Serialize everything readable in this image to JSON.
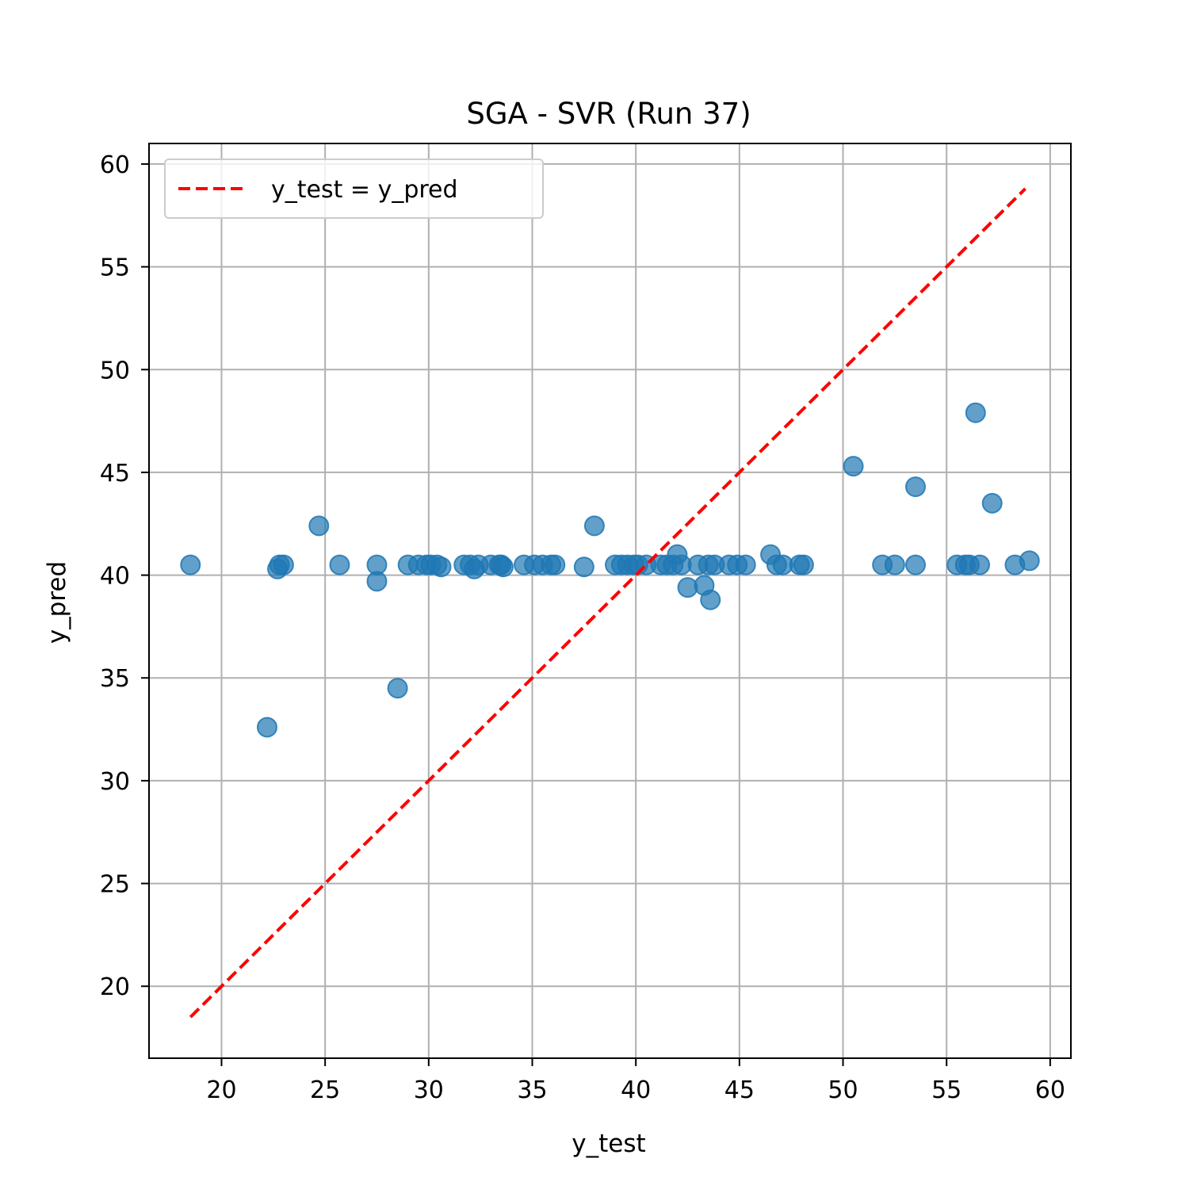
{
  "chart_data": {
    "type": "scatter",
    "title": "SGA - SVR (Run 37)",
    "xlabel": "y_test",
    "ylabel": "y_pred",
    "xlim": [
      16.5,
      61
    ],
    "ylim": [
      16.5,
      61
    ],
    "xticks": [
      20,
      25,
      30,
      35,
      40,
      45,
      50,
      55,
      60
    ],
    "yticks": [
      20,
      25,
      30,
      35,
      40,
      45,
      50,
      55,
      60
    ],
    "grid": true,
    "legend_position": "upper-left",
    "colors": {
      "points": "#1f77b4",
      "reference_line": "#ff0000"
    },
    "reference_line": {
      "name": "y_test = y_pred",
      "x": [
        18.5,
        58.8
      ],
      "y": [
        18.5,
        58.8
      ]
    },
    "points": [
      {
        "x": 18.5,
        "y": 40.5
      },
      {
        "x": 22.2,
        "y": 32.6
      },
      {
        "x": 22.7,
        "y": 40.3
      },
      {
        "x": 22.8,
        "y": 40.5
      },
      {
        "x": 23.0,
        "y": 40.5
      },
      {
        "x": 24.7,
        "y": 42.4
      },
      {
        "x": 25.7,
        "y": 40.5
      },
      {
        "x": 27.5,
        "y": 40.5
      },
      {
        "x": 27.5,
        "y": 39.7
      },
      {
        "x": 28.5,
        "y": 34.5
      },
      {
        "x": 29.0,
        "y": 40.5
      },
      {
        "x": 29.5,
        "y": 40.5
      },
      {
        "x": 29.9,
        "y": 40.5
      },
      {
        "x": 30.1,
        "y": 40.5
      },
      {
        "x": 30.4,
        "y": 40.5
      },
      {
        "x": 30.6,
        "y": 40.4
      },
      {
        "x": 31.7,
        "y": 40.5
      },
      {
        "x": 32.0,
        "y": 40.5
      },
      {
        "x": 32.2,
        "y": 40.3
      },
      {
        "x": 32.4,
        "y": 40.5
      },
      {
        "x": 33.0,
        "y": 40.5
      },
      {
        "x": 33.4,
        "y": 40.5
      },
      {
        "x": 33.5,
        "y": 40.5
      },
      {
        "x": 33.6,
        "y": 40.4
      },
      {
        "x": 34.6,
        "y": 40.5
      },
      {
        "x": 35.1,
        "y": 40.5
      },
      {
        "x": 35.5,
        "y": 40.5
      },
      {
        "x": 35.9,
        "y": 40.5
      },
      {
        "x": 36.1,
        "y": 40.5
      },
      {
        "x": 37.5,
        "y": 40.4
      },
      {
        "x": 38.0,
        "y": 42.4
      },
      {
        "x": 39.0,
        "y": 40.5
      },
      {
        "x": 39.3,
        "y": 40.5
      },
      {
        "x": 39.6,
        "y": 40.5
      },
      {
        "x": 39.9,
        "y": 40.5
      },
      {
        "x": 40.1,
        "y": 40.5
      },
      {
        "x": 40.5,
        "y": 40.5
      },
      {
        "x": 41.2,
        "y": 40.5
      },
      {
        "x": 41.5,
        "y": 40.5
      },
      {
        "x": 41.8,
        "y": 40.5
      },
      {
        "x": 42.0,
        "y": 41.0
      },
      {
        "x": 42.2,
        "y": 40.5
      },
      {
        "x": 42.5,
        "y": 39.4
      },
      {
        "x": 43.0,
        "y": 40.5
      },
      {
        "x": 43.3,
        "y": 39.5
      },
      {
        "x": 43.6,
        "y": 38.8
      },
      {
        "x": 43.5,
        "y": 40.5
      },
      {
        "x": 43.8,
        "y": 40.5
      },
      {
        "x": 44.5,
        "y": 40.5
      },
      {
        "x": 44.9,
        "y": 40.5
      },
      {
        "x": 45.3,
        "y": 40.5
      },
      {
        "x": 46.5,
        "y": 41.0
      },
      {
        "x": 46.8,
        "y": 40.5
      },
      {
        "x": 47.1,
        "y": 40.5
      },
      {
        "x": 47.9,
        "y": 40.5
      },
      {
        "x": 48.1,
        "y": 40.5
      },
      {
        "x": 50.5,
        "y": 45.3
      },
      {
        "x": 51.9,
        "y": 40.5
      },
      {
        "x": 52.5,
        "y": 40.5
      },
      {
        "x": 53.5,
        "y": 44.3
      },
      {
        "x": 53.5,
        "y": 40.5
      },
      {
        "x": 55.5,
        "y": 40.5
      },
      {
        "x": 55.9,
        "y": 40.5
      },
      {
        "x": 56.1,
        "y": 40.5
      },
      {
        "x": 56.4,
        "y": 47.9
      },
      {
        "x": 56.6,
        "y": 40.5
      },
      {
        "x": 57.2,
        "y": 43.5
      },
      {
        "x": 58.3,
        "y": 40.5
      },
      {
        "x": 59.0,
        "y": 40.7
      }
    ]
  }
}
